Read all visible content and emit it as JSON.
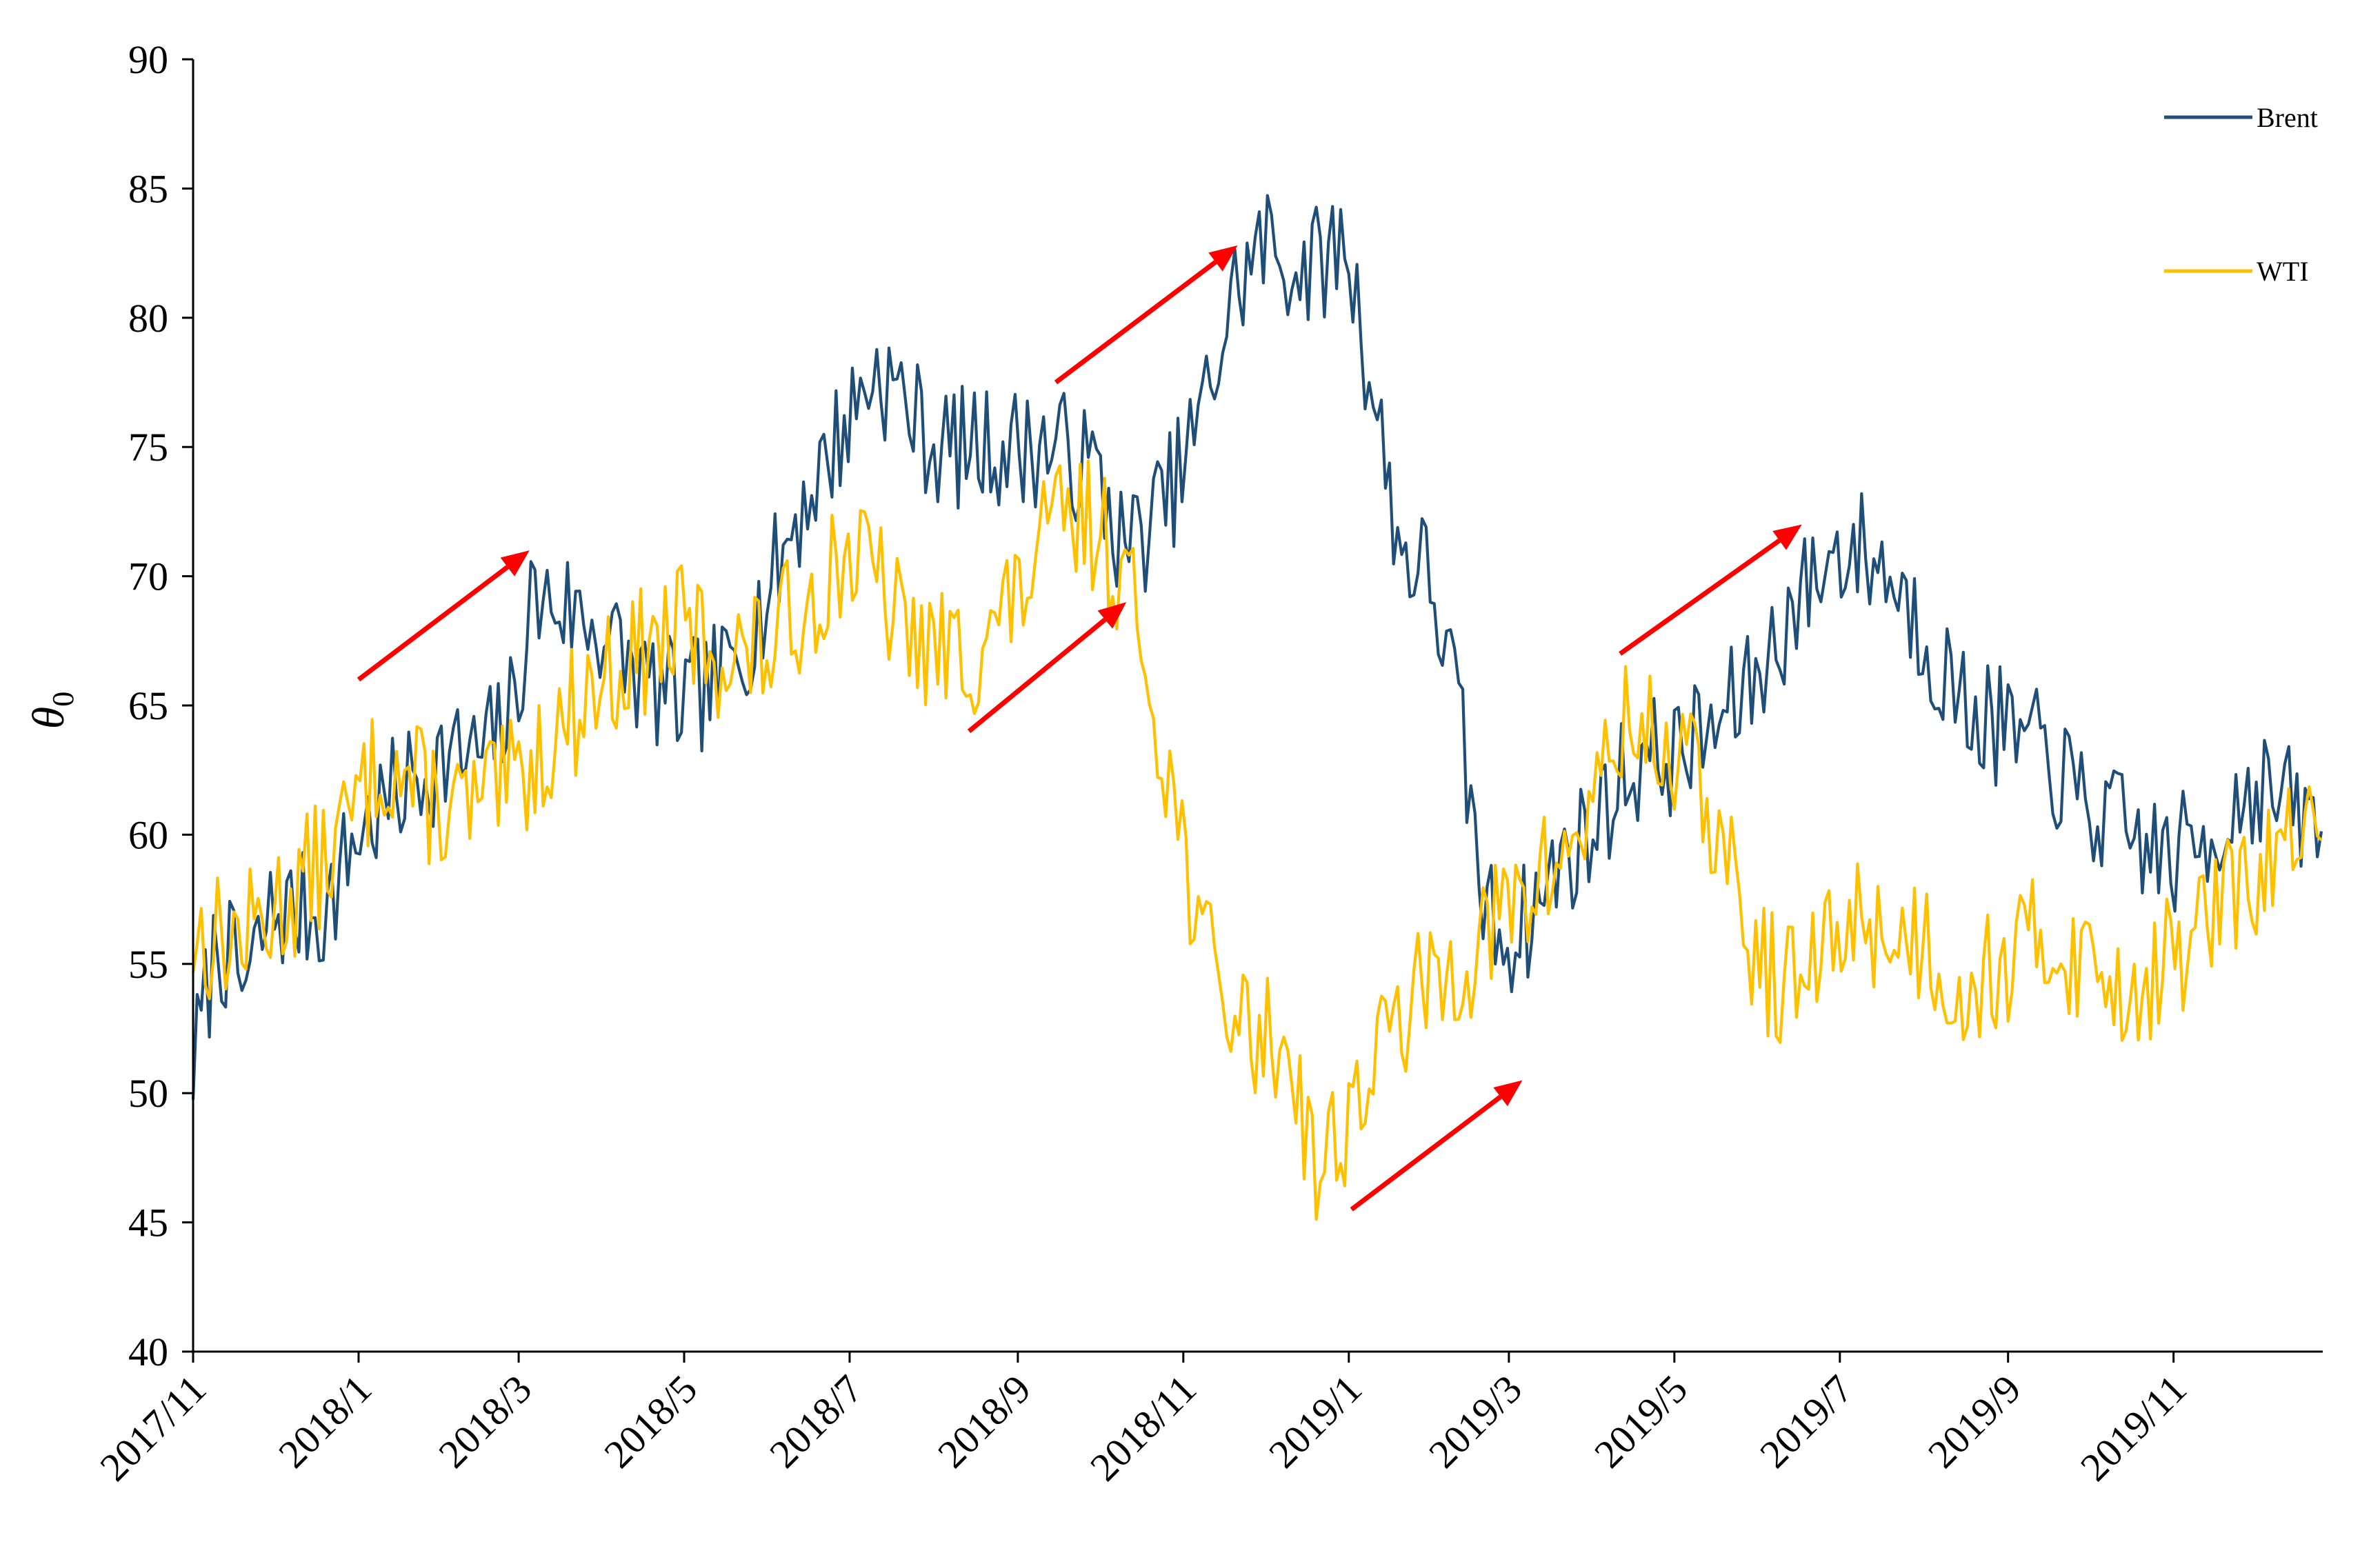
{
  "chart_data": {
    "type": "line",
    "ylabel": "θ",
    "ylabel_subscript": "0",
    "ylim": [
      40,
      90
    ],
    "yticks": [
      40,
      45,
      50,
      55,
      60,
      65,
      70,
      75,
      80,
      85,
      90
    ],
    "x_start": "2017/11/01",
    "x_end": "2019/12/26",
    "xticks": [
      "2017/11",
      "2018/1",
      "2018/3",
      "2018/5",
      "2018/7",
      "2018/9",
      "2018/11",
      "2019/1",
      "2019/3",
      "2019/5",
      "2019/7",
      "2019/9",
      "2019/11"
    ],
    "grid": false,
    "legend_position": "top-right",
    "series": [
      {
        "name": "Brent",
        "color": "#1f4e79",
        "anchors": [
          [
            "2017/11/01",
            51
          ],
          [
            "2017/11/10",
            56
          ],
          [
            "2017/11/20",
            54
          ],
          [
            "2017/11/30",
            57
          ],
          [
            "2017/12/10",
            57
          ],
          [
            "2017/12/20",
            57
          ],
          [
            "2017/12/31",
            60
          ],
          [
            "2018/01/10",
            61
          ],
          [
            "2018/01/20",
            62
          ],
          [
            "2018/02/01",
            63
          ],
          [
            "2018/02/15",
            63
          ],
          [
            "2018/02/28",
            65
          ],
          [
            "2018/03/05",
            69
          ],
          [
            "2018/03/15",
            69
          ],
          [
            "2018/03/31",
            68
          ],
          [
            "2018/04/15",
            66
          ],
          [
            "2018/04/30",
            65
          ],
          [
            "2018/05/15",
            66
          ],
          [
            "2018/05/31",
            69
          ],
          [
            "2018/06/10",
            72
          ],
          [
            "2018/06/20",
            74
          ],
          [
            "2018/06/30",
            76
          ],
          [
            "2018/07/10",
            78
          ],
          [
            "2018/07/20",
            77
          ],
          [
            "2018/08/01",
            75
          ],
          [
            "2018/08/15",
            75
          ],
          [
            "2018/08/31",
            75
          ],
          [
            "2018/09/15",
            75
          ],
          [
            "2018/09/30",
            74
          ],
          [
            "2018/10/10",
            71
          ],
          [
            "2018/10/20",
            72
          ],
          [
            "2018/10/31",
            74
          ],
          [
            "2018/11/10",
            77
          ],
          [
            "2018/11/20",
            81
          ],
          [
            "2018/12/01",
            83
          ],
          [
            "2018/12/10",
            82
          ],
          [
            "2018/12/20",
            82
          ],
          [
            "2018/12/31",
            83
          ],
          [
            "2019/01/10",
            77
          ],
          [
            "2019/01/20",
            71
          ],
          [
            "2019/01/31",
            70
          ],
          [
            "2019/02/10",
            65
          ],
          [
            "2019/02/20",
            57
          ],
          [
            "2019/03/01",
            56
          ],
          [
            "2019/03/10",
            57
          ],
          [
            "2019/03/20",
            59
          ],
          [
            "2019/03/31",
            60
          ],
          [
            "2019/04/10",
            62
          ],
          [
            "2019/04/20",
            63
          ],
          [
            "2019/04/30",
            63
          ],
          [
            "2019/05/15",
            64
          ],
          [
            "2019/05/31",
            66
          ],
          [
            "2019/06/15",
            69
          ],
          [
            "2019/06/30",
            71
          ],
          [
            "2019/07/10",
            71
          ],
          [
            "2019/07/20",
            70
          ],
          [
            "2019/07/31",
            68
          ],
          [
            "2019/08/15",
            65
          ],
          [
            "2019/08/31",
            64
          ],
          [
            "2019/09/15",
            63
          ],
          [
            "2019/09/30",
            61
          ],
          [
            "2019/10/15",
            60
          ],
          [
            "2019/10/31",
            59
          ],
          [
            "2019/11/15",
            60
          ],
          [
            "2019/11/30",
            62
          ],
          [
            "2019/12/15",
            61
          ],
          [
            "2019/12/26",
            60
          ]
        ],
        "noise_amplitude": 2.4,
        "seed": 7
      },
      {
        "name": "WTI",
        "color": "#ffc000",
        "anchors": [
          [
            "2017/11/01",
            56
          ],
          [
            "2017/11/10",
            56
          ],
          [
            "2017/11/20",
            56
          ],
          [
            "2017/11/30",
            57
          ],
          [
            "2017/12/10",
            58
          ],
          [
            "2017/12/20",
            59
          ],
          [
            "2017/12/31",
            61
          ],
          [
            "2018/01/10",
            63
          ],
          [
            "2018/01/20",
            62
          ],
          [
            "2018/02/01",
            61
          ],
          [
            "2018/02/15",
            61
          ],
          [
            "2018/02/28",
            62
          ],
          [
            "2018/03/15",
            64
          ],
          [
            "2018/03/31",
            66
          ],
          [
            "2018/04/15",
            67
          ],
          [
            "2018/04/30",
            68
          ],
          [
            "2018/05/15",
            67
          ],
          [
            "2018/05/31",
            67
          ],
          [
            "2018/06/15",
            69
          ],
          [
            "2018/06/30",
            71
          ],
          [
            "2018/07/10",
            70
          ],
          [
            "2018/07/20",
            68
          ],
          [
            "2018/08/01",
            67
          ],
          [
            "2018/08/15",
            67
          ],
          [
            "2018/08/31",
            69
          ],
          [
            "2018/09/15",
            72
          ],
          [
            "2018/09/30",
            72
          ],
          [
            "2018/10/10",
            70
          ],
          [
            "2018/10/20",
            66
          ],
          [
            "2018/10/31",
            60
          ],
          [
            "2018/11/10",
            55
          ],
          [
            "2018/11/20",
            53
          ],
          [
            "2018/12/01",
            52
          ],
          [
            "2018/12/10",
            52
          ],
          [
            "2018/12/20",
            47
          ],
          [
            "2018/12/31",
            49
          ],
          [
            "2019/01/10",
            51
          ],
          [
            "2019/01/20",
            53
          ],
          [
            "2019/01/31",
            54
          ],
          [
            "2019/02/10",
            55
          ],
          [
            "2019/02/20",
            56
          ],
          [
            "2019/03/01",
            57
          ],
          [
            "2019/03/10",
            58
          ],
          [
            "2019/03/20",
            59
          ],
          [
            "2019/03/31",
            61
          ],
          [
            "2019/04/10",
            64
          ],
          [
            "2019/04/20",
            64
          ],
          [
            "2019/04/30",
            63
          ],
          [
            "2019/05/10",
            62
          ],
          [
            "2019/05/20",
            59
          ],
          [
            "2019/05/31",
            55
          ],
          [
            "2019/06/15",
            54
          ],
          [
            "2019/06/30",
            56
          ],
          [
            "2019/07/10",
            57
          ],
          [
            "2019/07/20",
            56
          ],
          [
            "2019/07/31",
            56
          ],
          [
            "2019/08/15",
            54
          ],
          [
            "2019/08/31",
            55
          ],
          [
            "2019/09/15",
            56
          ],
          [
            "2019/09/30",
            55
          ],
          [
            "2019/10/15",
            54
          ],
          [
            "2019/10/31",
            55
          ],
          [
            "2019/11/15",
            57
          ],
          [
            "2019/11/30",
            58
          ],
          [
            "2019/12/15",
            60
          ],
          [
            "2019/12/26",
            59
          ]
        ],
        "noise_amplitude": 2.6,
        "seed": 13
      }
    ],
    "arrows": [
      {
        "from": [
          "2018/01/01",
          66
        ],
        "to": [
          "2018/03/05",
          71
        ]
      },
      {
        "from": [
          "2018/08/14",
          64
        ],
        "to": [
          "2018/10/11",
          69
        ]
      },
      {
        "from": [
          "2018/09/15",
          77.5
        ],
        "to": [
          "2018/11/21",
          82.8
        ]
      },
      {
        "from": [
          "2019/01/02",
          45.5
        ],
        "to": [
          "2019/03/06",
          50.5
        ]
      },
      {
        "from": [
          "2019/04/11",
          67
        ],
        "to": [
          "2019/06/17",
          72
        ]
      }
    ],
    "arrow_color": "#ff0000"
  }
}
